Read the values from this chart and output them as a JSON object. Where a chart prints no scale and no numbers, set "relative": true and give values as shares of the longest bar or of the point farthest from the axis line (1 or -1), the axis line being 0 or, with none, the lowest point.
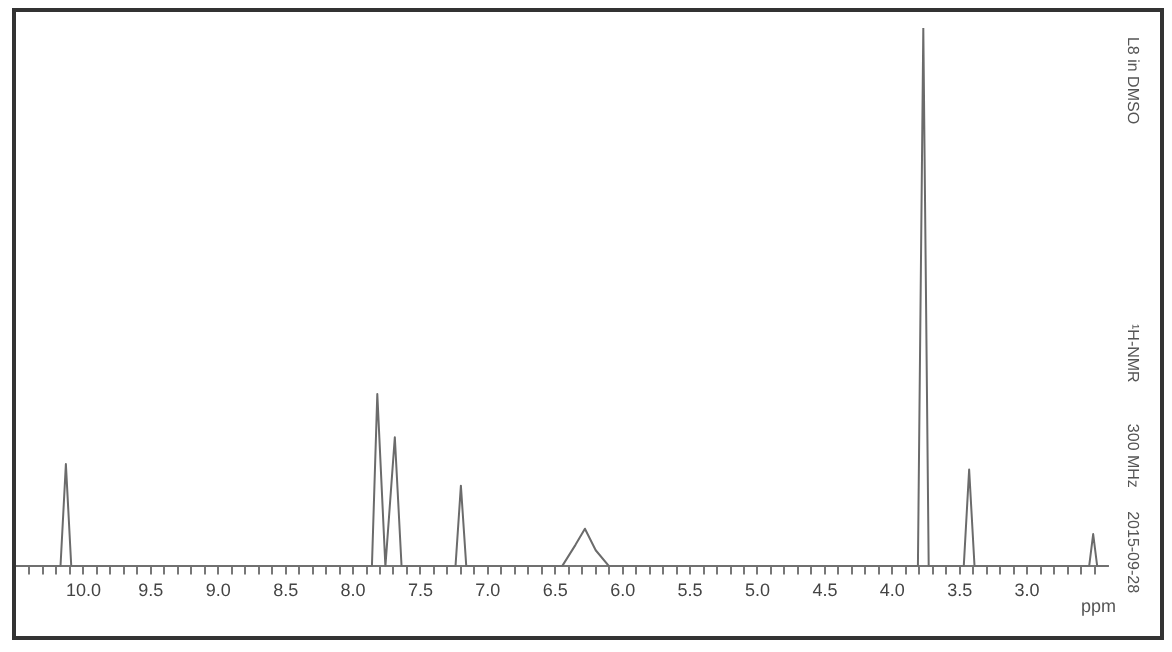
{
  "chart_data": {
    "type": "line",
    "relative": true,
    "xlabel": "ppm",
    "annotations": [
      "L8 in DMSO",
      "¹H-NMR",
      "300 MHz",
      "2015-09-28"
    ],
    "x": [
      10.5,
      10.17,
      10.13,
      10.09,
      7.86,
      7.82,
      7.76,
      7.69,
      7.64,
      7.24,
      7.2,
      7.16,
      6.45,
      6.35,
      6.28,
      6.2,
      6.1,
      3.81,
      3.77,
      3.73,
      3.47,
      3.43,
      3.39,
      2.54,
      2.51,
      2.48,
      2.4
    ],
    "series": [
      {
        "color": "#6b6b6b",
        "values": [
          0,
          0,
          0.19,
          0,
          0,
          0.32,
          0,
          0.24,
          0,
          0,
          0.15,
          0,
          0,
          0.04,
          0.07,
          0.03,
          0,
          0,
          1,
          0,
          0,
          0.18,
          0,
          0,
          0.06,
          0,
          0
        ]
      }
    ],
    "xlim": [
      10.5,
      2.4
    ],
    "xticks": [
      {
        "value": 10,
        "label": "10.0"
      },
      9.5,
      {
        "value": 9,
        "label": "9.0"
      },
      8.5,
      {
        "value": 8,
        "label": "8.0"
      },
      7.5,
      {
        "value": 7,
        "label": "7.0"
      },
      6.5,
      {
        "value": 6,
        "label": "6.0"
      },
      5.5,
      {
        "value": 5,
        "label": "5.0"
      },
      4.5,
      {
        "value": 4,
        "label": "4.0"
      },
      3.5,
      {
        "value": 3,
        "label": "3.0"
      },
      {
        "value": 10.4,
        "label": null
      },
      {
        "value": 10.3,
        "label": null
      },
      {
        "value": 10.2,
        "label": null
      },
      {
        "value": 10.1,
        "label": null
      },
      {
        "value": 9.9,
        "label": null
      },
      {
        "value": 9.8,
        "label": null
      },
      {
        "value": 9.7,
        "label": null
      },
      {
        "value": 9.6,
        "label": null
      },
      {
        "value": 9.4,
        "label": null
      },
      {
        "value": 9.3,
        "label": null
      },
      {
        "value": 9.2,
        "label": null
      },
      {
        "value": 9.1,
        "label": null
      },
      {
        "value": 8.9,
        "label": null
      },
      {
        "value": 8.8,
        "label": null
      },
      {
        "value": 8.7,
        "label": null
      },
      {
        "value": 8.6,
        "label": null
      },
      {
        "value": 8.4,
        "label": null
      },
      {
        "value": 8.3,
        "label": null
      },
      {
        "value": 8.2,
        "label": null
      },
      {
        "value": 8.1,
        "label": null
      },
      {
        "value": 7.9,
        "label": null
      },
      {
        "value": 7.8,
        "label": null
      },
      {
        "value": 7.7,
        "label": null
      },
      {
        "value": 7.6,
        "label": null
      },
      {
        "value": 7.4,
        "label": null
      },
      {
        "value": 7.3,
        "label": null
      },
      {
        "value": 7.2,
        "label": null
      },
      {
        "value": 7.1,
        "label": null
      },
      {
        "value": 6.9,
        "label": null
      },
      {
        "value": 6.8,
        "label": null
      },
      {
        "value": 6.7,
        "label": null
      },
      {
        "value": 6.6,
        "label": null
      },
      {
        "value": 6.4,
        "label": null
      },
      {
        "value": 6.3,
        "label": null
      },
      {
        "value": 6.2,
        "label": null
      },
      {
        "value": 6.1,
        "label": null
      },
      {
        "value": 5.9,
        "label": null
      },
      {
        "value": 5.8,
        "label": null
      },
      {
        "value": 5.7,
        "label": null
      },
      {
        "value": 5.6,
        "label": null
      },
      {
        "value": 5.4,
        "label": null
      },
      {
        "value": 5.3,
        "label": null
      },
      {
        "value": 5.2,
        "label": null
      },
      {
        "value": 5.1,
        "label": null
      },
      {
        "value": 4.9,
        "label": null
      },
      {
        "value": 4.8,
        "label": null
      },
      {
        "value": 4.7,
        "label": null
      },
      {
        "value": 4.6,
        "label": null
      },
      {
        "value": 4.4,
        "label": null
      },
      {
        "value": 4.3,
        "label": null
      },
      {
        "value": 4.2,
        "label": null
      },
      {
        "value": 4.1,
        "label": null
      },
      {
        "value": 3.9,
        "label": null
      },
      {
        "value": 3.8,
        "label": null
      },
      {
        "value": 3.7,
        "label": null
      },
      {
        "value": 3.6,
        "label": null
      },
      {
        "value": 3.4,
        "label": null
      },
      {
        "value": 3.3,
        "label": null
      },
      {
        "value": 3.2,
        "label": null
      },
      {
        "value": 3.1,
        "label": null
      },
      {
        "value": 2.9,
        "label": null
      },
      {
        "value": 2.8,
        "label": null
      },
      {
        "value": 2.7,
        "label": null
      },
      {
        "value": 2.6,
        "label": null
      },
      {
        "value": 2.5,
        "label": null
      }
    ],
    "grid": false,
    "legend": false,
    "marker": "none",
    "line_style": "solid",
    "tick_labels": "x"
  }
}
